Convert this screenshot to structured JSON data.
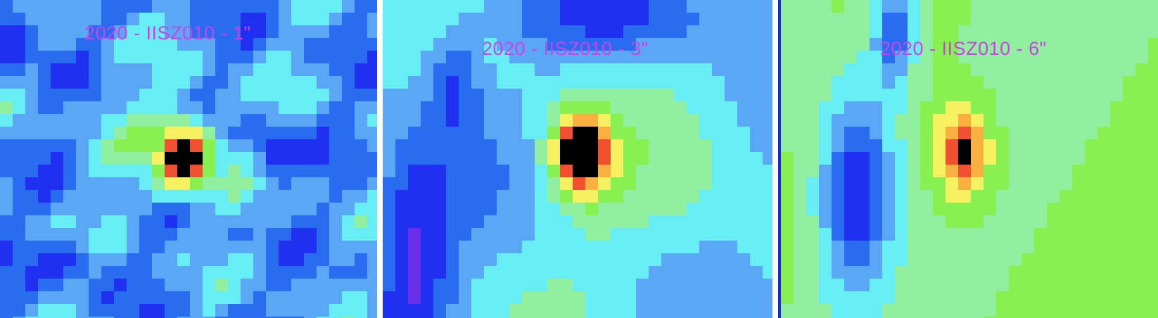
{
  "panels": [
    {
      "label": "2020 - IISZ010 - 1\""
    },
    {
      "label": "2020 - IISZ010 - 3\""
    },
    {
      "label": "2020 - IISZ010 - 6\""
    }
  ],
  "colormap": [
    "#6a2ee8",
    "#2030f0",
    "#2a6cf0",
    "#5aa8f5",
    "#66eef4",
    "#90f0a0",
    "#88f050",
    "#f4f060",
    "#f8b040",
    "#f05030",
    "#000000"
  ],
  "label_color": "#d040e8"
}
